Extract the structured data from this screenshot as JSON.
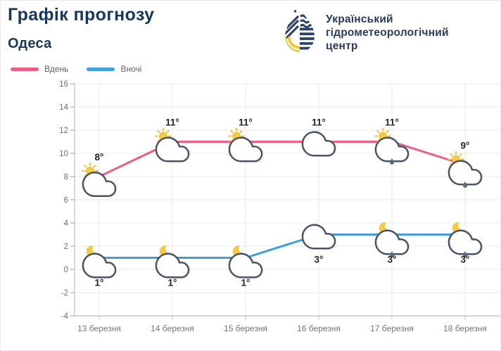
{
  "header": {
    "title": "Графік прогнозу",
    "subtitle": "Одеса",
    "logo_lines": [
      "Український",
      "гідрометеорологічний",
      "центр"
    ]
  },
  "legend": [
    {
      "label": "Вдень",
      "color": "#ef5d80"
    },
    {
      "label": "Вночі",
      "color": "#3d9fdd"
    }
  ],
  "chart_data": {
    "type": "line",
    "title": "",
    "xlabel": "",
    "ylabel": "",
    "categories": [
      "13 березня",
      "14 березня",
      "15 березня",
      "16 березня",
      "17 березня",
      "18 березня"
    ],
    "series": [
      {
        "name": "Вдень",
        "color": "#ef5d80",
        "values": [
          8,
          11,
          11,
          11,
          11,
          9
        ],
        "point_labels": [
          "8°",
          "11°",
          "11°",
          "11°",
          "11°",
          "9°"
        ],
        "icons": [
          "sun-cloud",
          "sun-cloud",
          "sun-cloud",
          "cloud",
          "sun-cloud-rain",
          "sun-cloud-rain"
        ]
      },
      {
        "name": "Вночі",
        "color": "#3d9fdd",
        "values": [
          1,
          1,
          1,
          3,
          3,
          3
        ],
        "point_labels": [
          "1°",
          "1°",
          "1°",
          "3°",
          "3°",
          "3°"
        ],
        "icons": [
          "moon-cloud",
          "moon-cloud",
          "moon-cloud",
          "cloud",
          "moon-cloud-rain",
          "moon-cloud-rain"
        ]
      }
    ],
    "ylim": [
      -4,
      16
    ],
    "yticks": [
      16,
      14,
      12,
      10,
      8,
      6,
      4,
      2,
      0,
      -2,
      -4
    ],
    "grid": true,
    "legend_position": "top-left"
  },
  "colors": {
    "title_text": "#17375e",
    "logo_navy": "#2e4369",
    "logo_yellow": "#f3c332",
    "grid": "#e8e8e8",
    "axis": "#b0b0b0",
    "tick_text": "#6e6e6e",
    "temp_text": "#1c2330",
    "cloud_outline": "#4a5466",
    "cloud_fill": "#ffffff",
    "sun": "#f6ca45",
    "moon": "#f6c844",
    "rain_drop": "#5c6b80"
  }
}
